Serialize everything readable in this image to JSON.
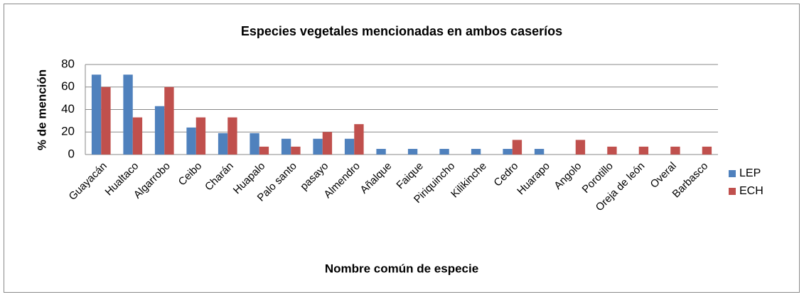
{
  "chart_data": {
    "type": "bar",
    "title": "Especies vegetales mencionadas en ambos caseríos",
    "x_label": "Nombre común de especie",
    "y_label": "% de mención",
    "categories": [
      "Guayacán",
      "Hualtaco",
      "Algarrobo",
      "Ceibo",
      "Charán",
      "Huapalo",
      "Palo santo",
      "pasayo",
      "Almendro",
      "Añalque",
      "Faique",
      "Piriquincho",
      "Kilikinche",
      "Cedro",
      "Huarapo",
      "Angolo",
      "Porotillo",
      "Oreja de león",
      "Overal",
      "Barbasco"
    ],
    "series": [
      {
        "name": "LEP",
        "color": "#4f81bd",
        "values": [
          71,
          71,
          43,
          24,
          19,
          19,
          14,
          14,
          14,
          5,
          5,
          5,
          5,
          5,
          5,
          0,
          0,
          0,
          0,
          0
        ]
      },
      {
        "name": "ECH",
        "color": "#c0504d",
        "values": [
          60,
          33,
          60,
          33,
          33,
          7,
          7,
          20,
          27,
          0,
          0,
          0,
          0,
          13,
          0,
          13,
          7,
          7,
          7,
          7
        ]
      }
    ],
    "ylim": [
      0,
      80
    ],
    "yticks": [
      0,
      20,
      40,
      60,
      80
    ],
    "grid": true,
    "legend": "right"
  }
}
